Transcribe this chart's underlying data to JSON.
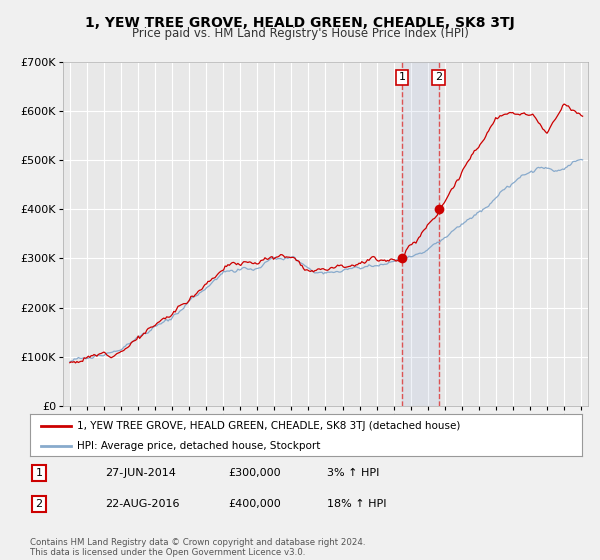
{
  "title": "1, YEW TREE GROVE, HEALD GREEN, CHEADLE, SK8 3TJ",
  "subtitle": "Price paid vs. HM Land Registry's House Price Index (HPI)",
  "legend_line1": "1, YEW TREE GROVE, HEALD GREEN, CHEADLE, SK8 3TJ (detached house)",
  "legend_line2": "HPI: Average price, detached house, Stockport",
  "sale1_label": "1",
  "sale1_date": "27-JUN-2014",
  "sale1_price": "£300,000",
  "sale1_hpi": "3% ↑ HPI",
  "sale2_label": "2",
  "sale2_date": "22-AUG-2016",
  "sale2_price": "£400,000",
  "sale2_hpi": "18% ↑ HPI",
  "sale1_year": 2014.5,
  "sale2_year": 2016.64,
  "sale1_value": 300000,
  "sale2_value": 400000,
  "price_line_color": "#cc0000",
  "hpi_line_color": "#88aacc",
  "background_color": "#f0f0f0",
  "plot_bg_color": "#e8e8e8",
  "grid_color": "#ffffff",
  "ylim_min": 0,
  "ylim_max": 700000,
  "xlim_min": 1994.6,
  "xlim_max": 2025.4,
  "vline1_color": "#dd4444",
  "vline2_color": "#dd4444",
  "shade_color": "#aabbdd",
  "footnote": "Contains HM Land Registry data © Crown copyright and database right 2024.\nThis data is licensed under the Open Government Licence v3.0."
}
